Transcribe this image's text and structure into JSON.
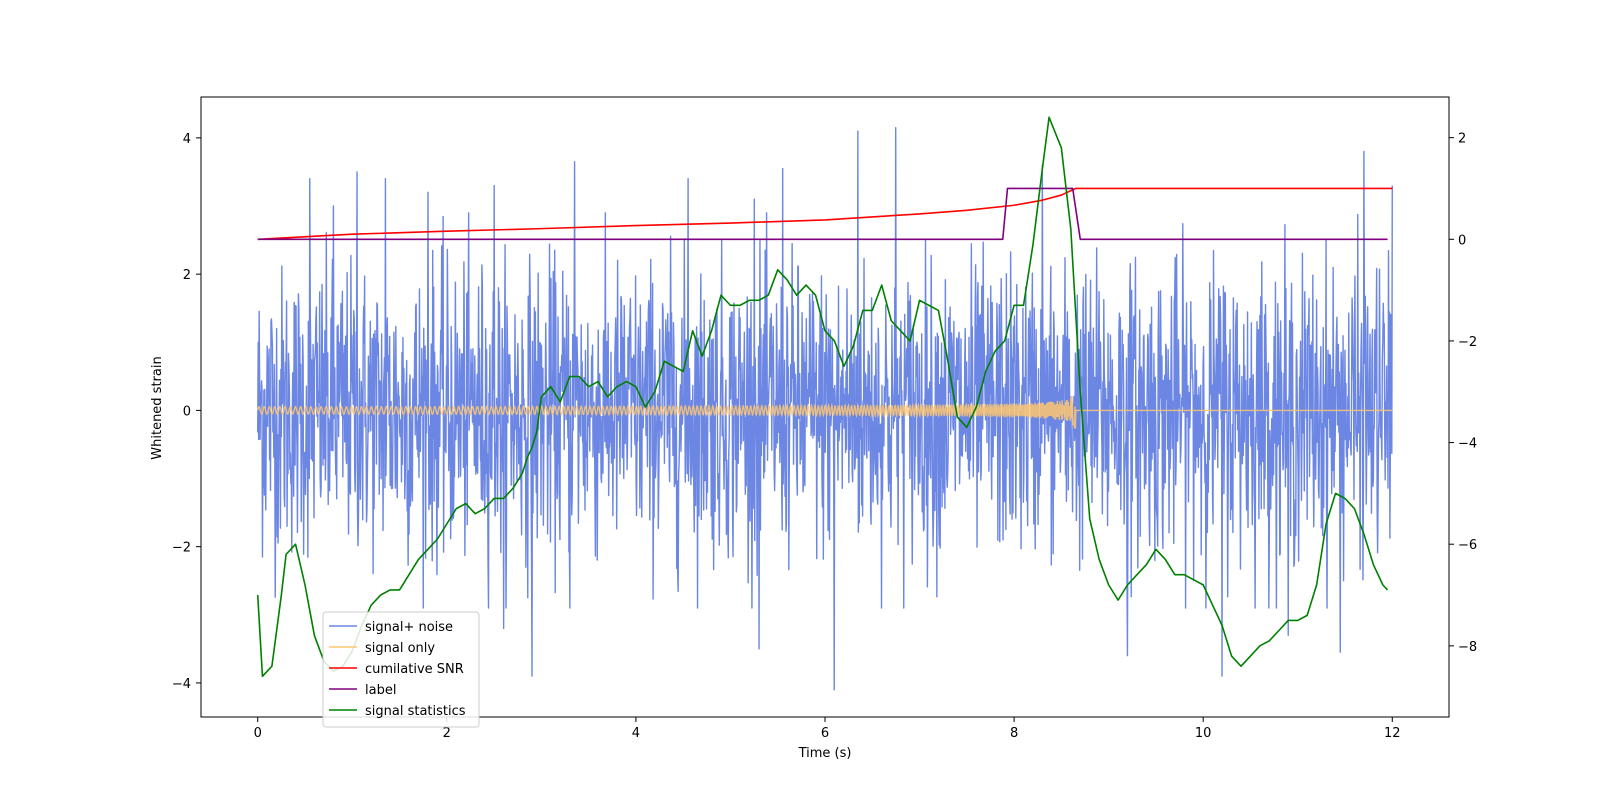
{
  "chart_data": {
    "type": "line",
    "xlabel": "Time (s)",
    "ylabel": "Whitened strain",
    "xlim": [
      -0.6,
      12.6
    ],
    "ylim_left": [
      -4.5,
      4.6
    ],
    "ylim_right": [
      -9.4,
      2.8
    ],
    "xticks": [
      0,
      2,
      4,
      6,
      8,
      10,
      12
    ],
    "yticks_left": [
      -4,
      -2,
      0,
      2,
      4
    ],
    "yticks_right": [
      -8,
      -6,
      -4,
      -2,
      0,
      2
    ],
    "grid": false,
    "legend_position": "lower-left",
    "series": [
      {
        "name": "signal+ noise",
        "axis": "left",
        "color": "#6b86e3",
        "style": "noise",
        "x_range": [
          0,
          12
        ],
        "typical_band": [
          -1.9,
          1.9
        ],
        "peaks_max": [
          [
            0.55,
            3.4
          ],
          [
            0.8,
            3.0
          ],
          [
            1.05,
            3.5
          ],
          [
            1.35,
            3.4
          ],
          [
            1.8,
            3.2
          ],
          [
            2.5,
            3.3
          ],
          [
            3.35,
            3.65
          ],
          [
            4.55,
            3.4
          ],
          [
            5.25,
            3.1
          ],
          [
            5.55,
            3.55
          ],
          [
            6.35,
            4.1
          ],
          [
            6.75,
            4.15
          ],
          [
            8.3,
            3.6
          ],
          [
            11.7,
            3.8
          ],
          [
            12.0,
            3.3
          ]
        ],
        "peaks_min": [
          [
            3.3,
            -2.9
          ],
          [
            2.6,
            -3.2
          ],
          [
            2.9,
            -3.9
          ],
          [
            5.3,
            -3.5
          ],
          [
            6.1,
            -4.1
          ],
          [
            9.2,
            -3.6
          ],
          [
            10.2,
            -3.9
          ],
          [
            10.9,
            -3.3
          ],
          [
            11.45,
            -3.55
          ]
        ]
      },
      {
        "name": "signal only",
        "axis": "left",
        "color": "#ffc770",
        "style": "chirp",
        "x_range": [
          0,
          12
        ],
        "merger_time": 8.65,
        "amp_start": 0.06,
        "amp_at_merger": 0.95
      },
      {
        "name": "cumilative SNR",
        "axis": "right",
        "color": "#ff0000",
        "style": "line",
        "x": [
          0,
          1,
          2,
          3,
          4,
          5,
          6,
          6.5,
          7,
          7.5,
          8,
          8.3,
          8.5,
          8.65,
          9,
          12
        ],
        "y": [
          0.0,
          0.1,
          0.16,
          0.21,
          0.27,
          0.32,
          0.38,
          0.44,
          0.5,
          0.57,
          0.67,
          0.77,
          0.87,
          1.0,
          1.0,
          1.0
        ]
      },
      {
        "name": "label",
        "axis": "right",
        "color": "#800080",
        "style": "line",
        "x": [
          0,
          7.88,
          7.93,
          8.62,
          8.7,
          11.95
        ],
        "y": [
          0,
          0,
          1,
          1,
          0,
          0
        ]
      },
      {
        "name": "signal statistics",
        "axis": "right",
        "color": "#008000",
        "style": "line",
        "x": [
          0,
          0.05,
          0.15,
          0.25,
          0.3,
          0.4,
          0.5,
          0.6,
          0.7,
          0.8,
          0.9,
          1.0,
          1.1,
          1.2,
          1.3,
          1.4,
          1.5,
          1.6,
          1.7,
          1.8,
          1.9,
          2.0,
          2.1,
          2.2,
          2.3,
          2.4,
          2.5,
          2.6,
          2.7,
          2.8,
          2.85,
          2.9,
          2.95,
          3.0,
          3.1,
          3.2,
          3.3,
          3.4,
          3.5,
          3.6,
          3.7,
          3.8,
          3.9,
          4.0,
          4.1,
          4.2,
          4.3,
          4.4,
          4.5,
          4.6,
          4.7,
          4.8,
          4.9,
          5.0,
          5.1,
          5.2,
          5.3,
          5.4,
          5.5,
          5.6,
          5.7,
          5.8,
          5.9,
          6.0,
          6.1,
          6.2,
          6.3,
          6.4,
          6.5,
          6.6,
          6.7,
          6.8,
          6.9,
          7.0,
          7.1,
          7.2,
          7.3,
          7.4,
          7.5,
          7.6,
          7.7,
          7.8,
          7.9,
          8.0,
          8.1,
          8.2,
          8.3,
          8.37,
          8.5,
          8.6,
          8.7,
          8.8,
          8.9,
          9.0,
          9.1,
          9.2,
          9.3,
          9.4,
          9.5,
          9.6,
          9.7,
          9.8,
          9.9,
          10.0,
          10.1,
          10.2,
          10.3,
          10.4,
          10.5,
          10.6,
          10.7,
          10.8,
          10.9,
          11.0,
          11.1,
          11.2,
          11.3,
          11.4,
          11.5,
          11.6,
          11.7,
          11.8,
          11.9,
          11.95
        ],
        "y": [
          -7.0,
          -8.6,
          -8.4,
          -7.0,
          -6.2,
          -6.0,
          -6.8,
          -7.8,
          -8.3,
          -8.5,
          -8.4,
          -8.1,
          -7.6,
          -7.2,
          -7.0,
          -6.9,
          -6.9,
          -6.6,
          -6.3,
          -6.1,
          -5.9,
          -5.6,
          -5.3,
          -5.2,
          -5.4,
          -5.3,
          -5.1,
          -5.1,
          -4.9,
          -4.6,
          -4.3,
          -4.1,
          -3.8,
          -3.1,
          -2.9,
          -3.2,
          -2.7,
          -2.7,
          -2.9,
          -2.8,
          -3.1,
          -2.9,
          -2.8,
          -2.9,
          -3.3,
          -3.0,
          -2.4,
          -2.5,
          -2.6,
          -1.8,
          -2.3,
          -1.8,
          -1.1,
          -1.3,
          -1.3,
          -1.2,
          -1.2,
          -1.1,
          -0.6,
          -0.8,
          -1.1,
          -0.9,
          -1.1,
          -1.8,
          -2.0,
          -2.5,
          -2.1,
          -1.4,
          -1.4,
          -0.9,
          -1.6,
          -1.8,
          -2.0,
          -1.2,
          -1.3,
          -1.4,
          -2.4,
          -3.5,
          -3.7,
          -3.3,
          -2.6,
          -2.2,
          -2.0,
          -1.3,
          -1.3,
          -0.1,
          1.4,
          2.4,
          1.8,
          0.2,
          -3.0,
          -5.5,
          -6.3,
          -6.8,
          -7.1,
          -6.8,
          -6.6,
          -6.4,
          -6.1,
          -6.3,
          -6.6,
          -6.6,
          -6.7,
          -6.8,
          -7.2,
          -7.6,
          -8.2,
          -8.4,
          -8.2,
          -8.0,
          -7.9,
          -7.7,
          -7.5,
          -7.5,
          -7.4,
          -6.8,
          -5.6,
          -5.0,
          -5.1,
          -5.3,
          -5.8,
          -6.4,
          -6.8,
          -6.9
        ]
      }
    ]
  }
}
